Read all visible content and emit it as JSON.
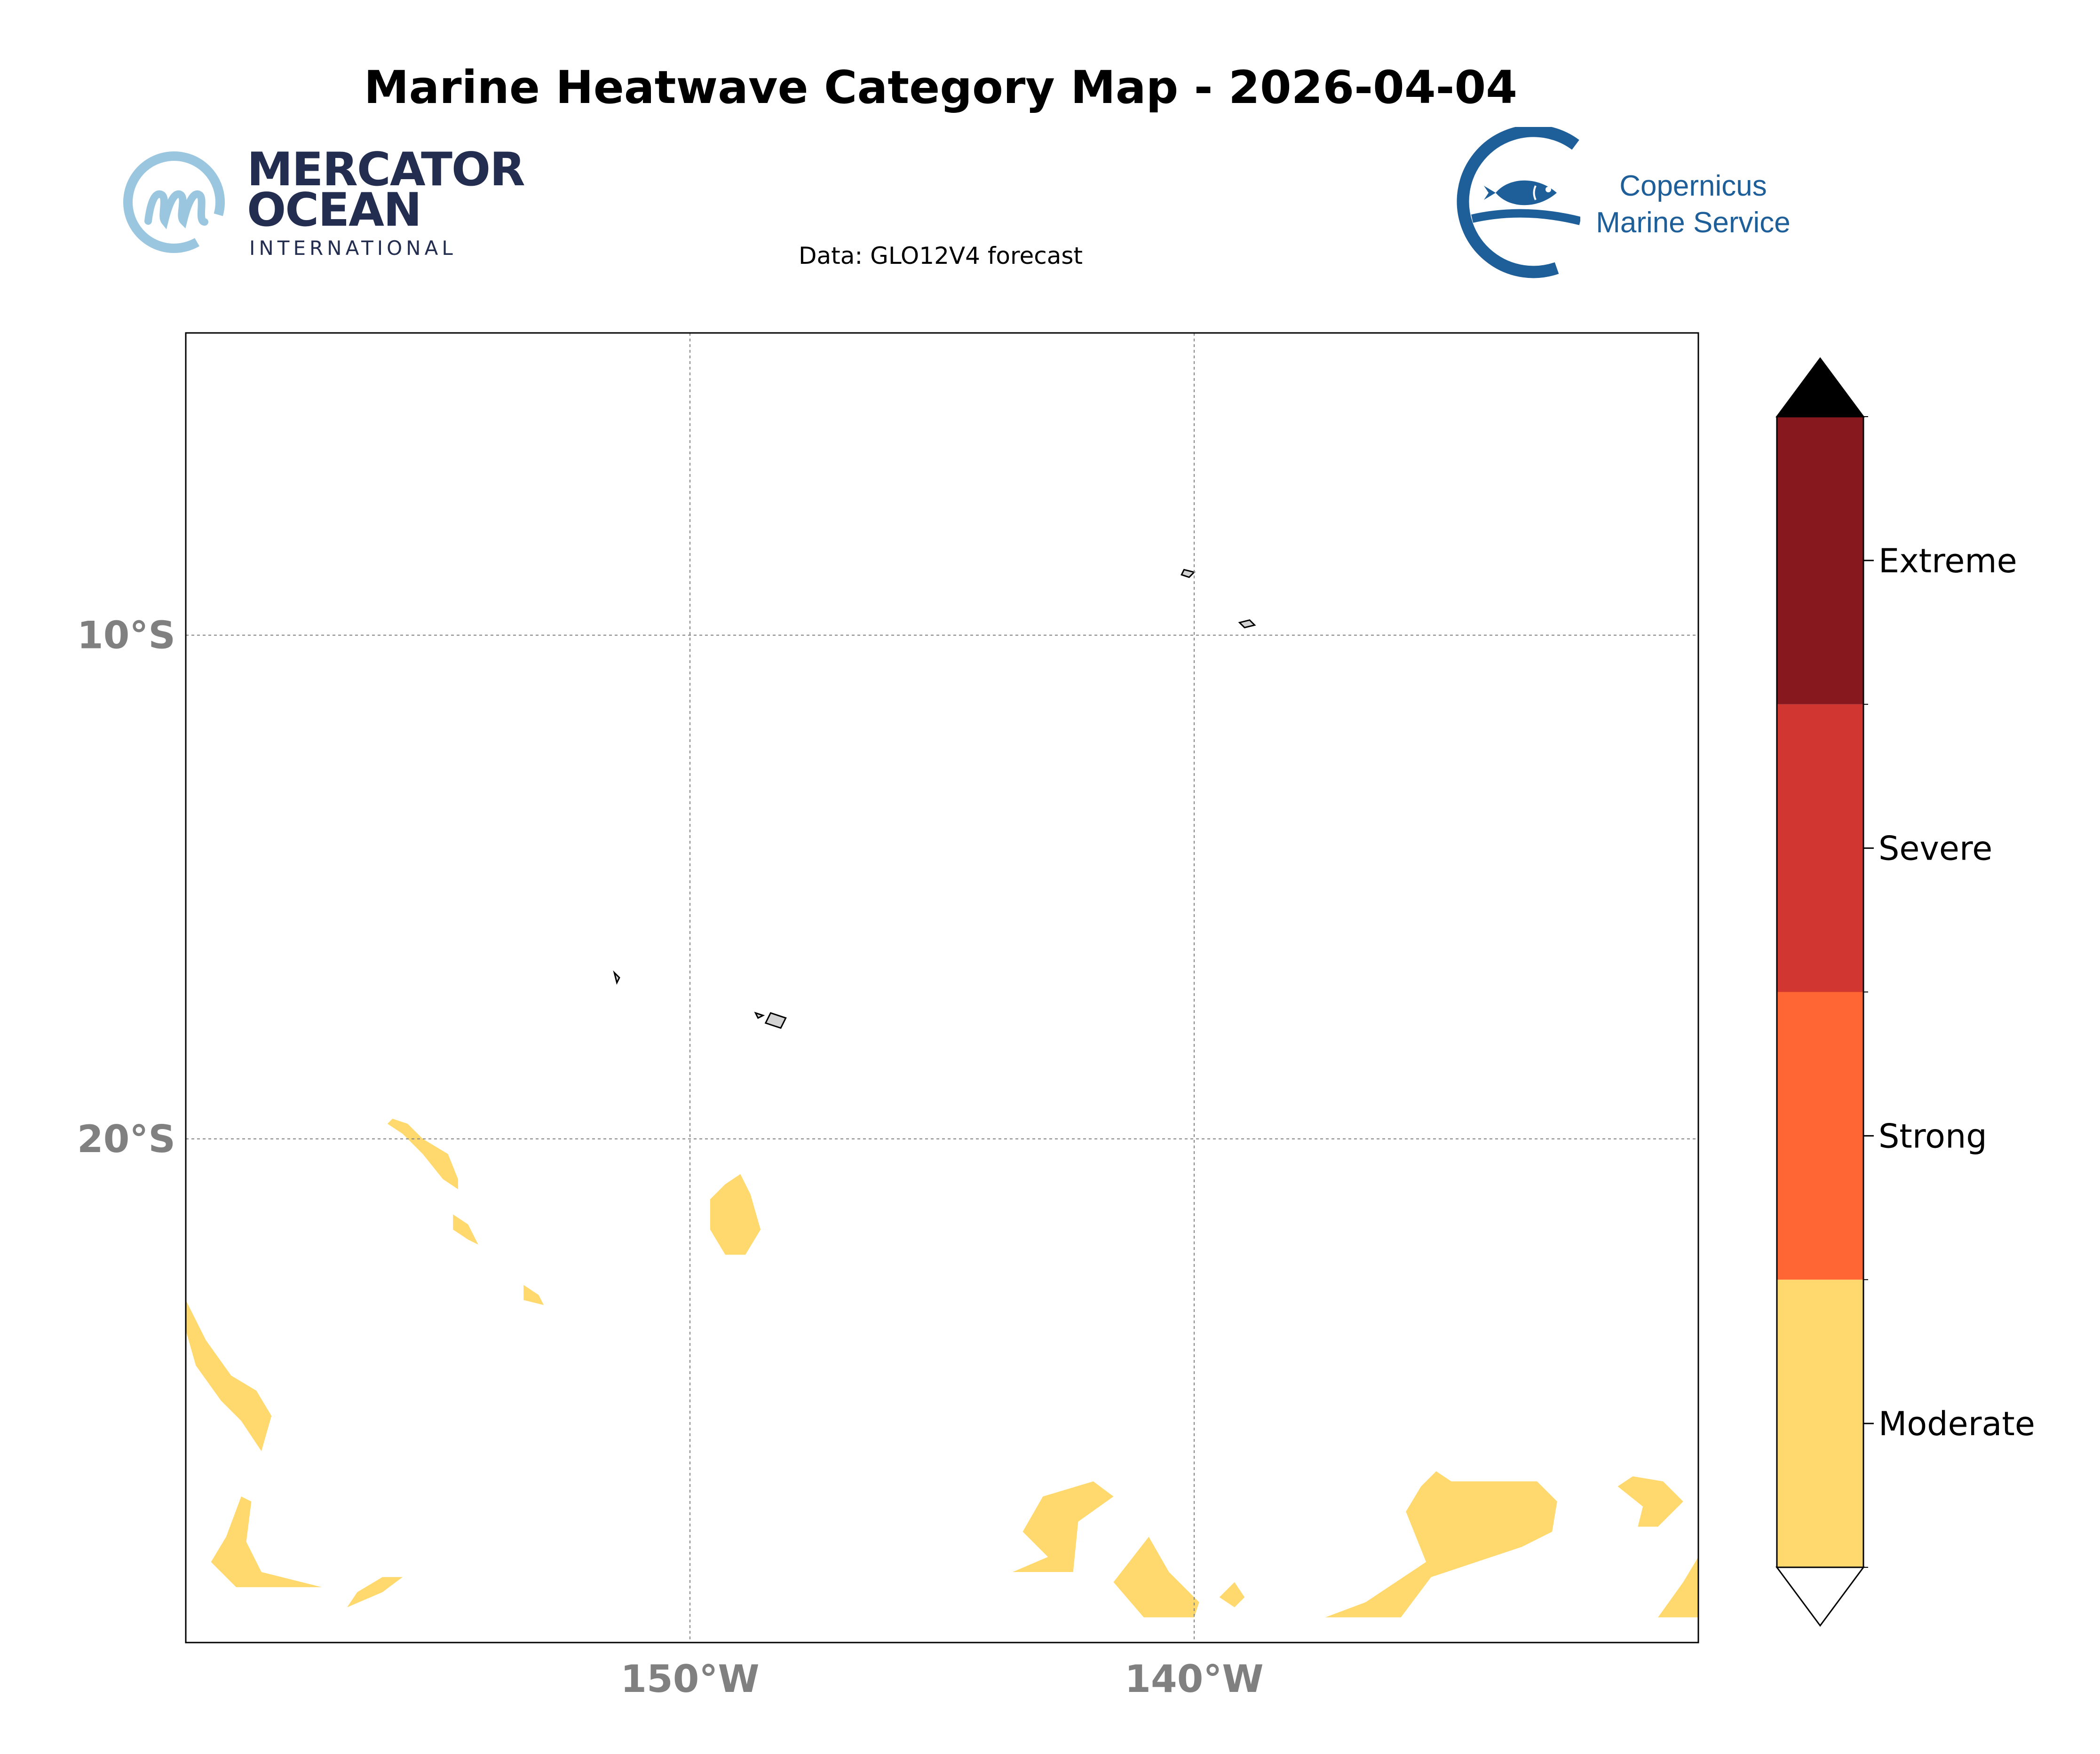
{
  "title": "Marine Heatwave Category Map - 2026-04-04",
  "subtitle": "Data: GLO12V4 forecast",
  "logos": {
    "mercator": {
      "line1": "MERCATOR",
      "line2": "OCEAN",
      "line3": "INTERNATIONAL"
    },
    "copernicus": {
      "line1": "Copernicus",
      "line2": "Marine Service"
    }
  },
  "map": {
    "lon_range": [
      -160,
      -130
    ],
    "lat_range": [
      -30,
      -4
    ],
    "lon_ticks": [
      {
        "value": -150,
        "label": "150°W"
      },
      {
        "value": -140,
        "label": "140°W"
      }
    ],
    "lat_ticks": [
      {
        "value": -10,
        "label": "10°S"
      },
      {
        "value": -20,
        "label": "20°S"
      }
    ],
    "gridlines": true,
    "land_color": "#d3d3d3",
    "heatwave_regions": [
      {
        "category": "Moderate",
        "polygon": [
          [
            -155.9,
            -19.6
          ],
          [
            -155.6,
            -19.7
          ],
          [
            -155.3,
            -20.0
          ],
          [
            -154.8,
            -20.3
          ],
          [
            -154.6,
            -20.8
          ],
          [
            -154.6,
            -21.0
          ],
          [
            -154.9,
            -20.8
          ],
          [
            -155.3,
            -20.3
          ],
          [
            -155.7,
            -19.9
          ],
          [
            -156.0,
            -19.7
          ]
        ]
      },
      {
        "category": "Moderate",
        "polygon": [
          [
            -154.7,
            -21.5
          ],
          [
            -154.4,
            -21.7
          ],
          [
            -154.2,
            -22.1
          ],
          [
            -154.4,
            -22.0
          ],
          [
            -154.7,
            -21.8
          ]
        ]
      },
      {
        "category": "Moderate",
        "polygon": [
          [
            -153.3,
            -22.9
          ],
          [
            -153.0,
            -23.1
          ],
          [
            -152.9,
            -23.3
          ],
          [
            -153.3,
            -23.2
          ]
        ]
      },
      {
        "category": "Moderate",
        "polygon": [
          [
            -149.0,
            -20.7
          ],
          [
            -148.8,
            -21.1
          ],
          [
            -148.6,
            -21.8
          ],
          [
            -148.9,
            -22.3
          ],
          [
            -149.3,
            -22.3
          ],
          [
            -149.6,
            -21.8
          ],
          [
            -149.6,
            -21.2
          ],
          [
            -149.3,
            -20.9
          ]
        ]
      },
      {
        "category": "Moderate",
        "polygon": [
          [
            -160.0,
            -23.8
          ],
          [
            -159.8,
            -24.5
          ],
          [
            -159.3,
            -25.2
          ],
          [
            -158.9,
            -25.6
          ],
          [
            -158.5,
            -26.2
          ],
          [
            -158.3,
            -25.5
          ],
          [
            -158.6,
            -25.0
          ],
          [
            -159.1,
            -24.7
          ],
          [
            -159.6,
            -24.0
          ],
          [
            -160.0,
            -23.2
          ]
        ]
      },
      {
        "category": "Moderate",
        "polygon": [
          [
            -158.9,
            -27.1
          ],
          [
            -159.2,
            -27.9
          ],
          [
            -159.5,
            -28.4
          ],
          [
            -159.0,
            -28.9
          ],
          [
            -157.3,
            -28.9
          ],
          [
            -158.5,
            -28.6
          ],
          [
            -158.8,
            -28.0
          ],
          [
            -158.7,
            -27.2
          ]
        ]
      },
      {
        "category": "Moderate",
        "polygon": [
          [
            -155.7,
            -28.7
          ],
          [
            -156.1,
            -29.0
          ],
          [
            -156.8,
            -29.3
          ],
          [
            -156.6,
            -29.0
          ],
          [
            -156.1,
            -28.7
          ]
        ]
      },
      {
        "category": "Moderate",
        "polygon": [
          [
            -142.0,
            -26.8
          ],
          [
            -143.0,
            -27.1
          ],
          [
            -143.4,
            -27.8
          ],
          [
            -142.9,
            -28.3
          ],
          [
            -143.6,
            -28.6
          ],
          [
            -142.4,
            -28.6
          ],
          [
            -142.3,
            -27.6
          ],
          [
            -141.6,
            -27.1
          ]
        ]
      },
      {
        "category": "Moderate",
        "polygon": [
          [
            -140.9,
            -27.9
          ],
          [
            -141.6,
            -28.8
          ],
          [
            -141.0,
            -29.5
          ],
          [
            -140.0,
            -29.5
          ],
          [
            -139.9,
            -29.2
          ],
          [
            -140.5,
            -28.6
          ]
        ]
      },
      {
        "category": "Moderate",
        "polygon": [
          [
            -139.2,
            -28.8
          ],
          [
            -139.5,
            -29.1
          ],
          [
            -139.2,
            -29.3
          ],
          [
            -139.0,
            -29.1
          ]
        ]
      },
      {
        "category": "Moderate",
        "polygon": [
          [
            -135.2,
            -26.6
          ],
          [
            -134.9,
            -26.8
          ],
          [
            -133.2,
            -26.8
          ],
          [
            -132.8,
            -27.2
          ],
          [
            -132.9,
            -27.8
          ],
          [
            -133.5,
            -28.1
          ],
          [
            -135.3,
            -28.7
          ],
          [
            -135.9,
            -29.5
          ],
          [
            -137.4,
            -29.5
          ],
          [
            -136.6,
            -29.2
          ],
          [
            -135.4,
            -28.4
          ],
          [
            -135.8,
            -27.4
          ],
          [
            -135.5,
            -26.9
          ]
        ]
      },
      {
        "category": "Moderate",
        "polygon": [
          [
            -131.3,
            -26.7
          ],
          [
            -130.7,
            -26.8
          ],
          [
            -130.3,
            -27.2
          ],
          [
            -130.8,
            -27.7
          ],
          [
            -131.2,
            -27.7
          ],
          [
            -131.1,
            -27.3
          ],
          [
            -131.6,
            -26.9
          ]
        ]
      },
      {
        "category": "Moderate",
        "polygon": [
          [
            -130.0,
            -28.3
          ],
          [
            -130.3,
            -28.8
          ],
          [
            -130.8,
            -29.5
          ],
          [
            -130.0,
            -29.5
          ]
        ]
      }
    ],
    "islands": [
      {
        "polygon": [
          [
            -148.4,
            -17.5
          ],
          [
            -148.1,
            -17.6
          ],
          [
            -148.2,
            -17.8
          ],
          [
            -148.5,
            -17.7
          ]
        ]
      },
      {
        "polygon": [
          [
            -148.7,
            -17.5
          ],
          [
            -148.55,
            -17.55
          ],
          [
            -148.65,
            -17.6
          ]
        ]
      },
      {
        "polygon": [
          [
            -140.2,
            -8.7
          ],
          [
            -140.0,
            -8.75
          ],
          [
            -140.1,
            -8.85
          ],
          [
            -140.25,
            -8.8
          ]
        ]
      },
      {
        "polygon": [
          [
            -139.1,
            -9.75
          ],
          [
            -138.9,
            -9.7
          ],
          [
            -138.8,
            -9.8
          ],
          [
            -139.0,
            -9.85
          ]
        ]
      },
      {
        "polygon": [
          [
            -151.5,
            -16.7
          ],
          [
            -151.4,
            -16.8
          ],
          [
            -151.45,
            -16.9
          ]
        ]
      }
    ]
  },
  "colorbar": {
    "categories": [
      {
        "label": "Moderate",
        "color": "#ffd96e"
      },
      {
        "label": "Strong",
        "color": "#ff6633"
      },
      {
        "label": "Severe",
        "color": "#d13730"
      },
      {
        "label": "Extreme",
        "color": "#87181e"
      }
    ],
    "over_color": "#000000",
    "under_color": "#ffffff"
  },
  "colors": {
    "moderate": "#ffd96e",
    "grid": "#808080",
    "text": "#000000"
  }
}
